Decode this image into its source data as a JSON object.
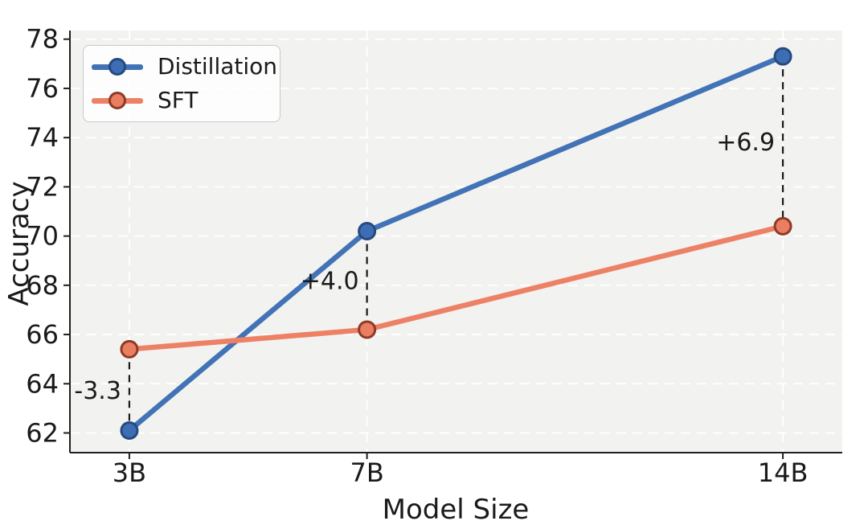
{
  "chart_data": {
    "type": "line",
    "title": "",
    "xlabel": "Model Size",
    "ylabel": "Accuracy",
    "categories": [
      "3B",
      "7B",
      "14B"
    ],
    "x_numeric": [
      3,
      7,
      14
    ],
    "series": [
      {
        "name": "Distillation",
        "values": [
          62.1,
          70.2,
          77.3
        ],
        "line_color": "#4273b6",
        "marker_fill": "#3d6eb5",
        "marker_edge": "#254a7d"
      },
      {
        "name": "SFT",
        "values": [
          65.4,
          66.2,
          70.4
        ],
        "line_color": "#ed8165",
        "marker_fill": "#e97e60",
        "marker_edge": "#8f3a27"
      }
    ],
    "annotations": [
      {
        "label": "-3.3",
        "x_index": 0
      },
      {
        "label": "+4.0",
        "x_index": 1
      },
      {
        "label": "+6.9",
        "x_index": 2
      }
    ],
    "yticks": [
      62,
      64,
      66,
      68,
      70,
      72,
      74,
      76,
      78
    ],
    "ylim": [
      61.2,
      78.35
    ],
    "xlim": [
      2,
      15
    ],
    "grid": true,
    "legend_position": "upper-left",
    "colors": {
      "plot_background": "#f2f2f0",
      "grid": "#ffffff",
      "spine": "#1f1f1f",
      "text": "#1a1a1a",
      "connector": "#1a1a1a"
    }
  }
}
